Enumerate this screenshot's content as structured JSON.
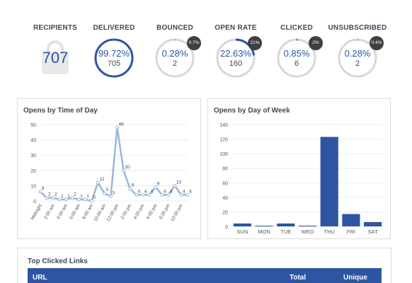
{
  "stats": {
    "recipients": {
      "label": "RECIPIENTS",
      "value": "707"
    },
    "delivered": {
      "label": "DELIVERED",
      "pct": "99.72%",
      "count": "705",
      "fraction": 0.9972
    },
    "bounced": {
      "label": "BOUNCED",
      "pct": "0.28%",
      "count": "2",
      "badge": "0.7%",
      "fraction": 0.0028
    },
    "open_rate": {
      "label": "OPEN RATE",
      "pct": "22.63%",
      "count": "160",
      "badge": "21%",
      "fraction": 0.2263
    },
    "clicked": {
      "label": "CLICKED",
      "pct": "0.85%",
      "count": "6",
      "badge": "2%",
      "fraction": 0.0085
    },
    "unsubscribed": {
      "label": "UNSUBSCRIBED",
      "pct": "0.28%",
      "count": "2",
      "badge": "0.4%",
      "fraction": 0.0028
    }
  },
  "colors": {
    "accent": "#2d55a3",
    "ring_track": "#d7d7d7",
    "line_series": "#9bb6d8",
    "badge": "#3f3f3f"
  },
  "opens_time": {
    "title": "Opens by Time of Day",
    "chart_data": {
      "type": "line",
      "x": [
        "Midnight",
        "1:00 am",
        "2:00 am",
        "3:00 am",
        "4:00 am",
        "5:00 am",
        "6:00 am",
        "7:00 am",
        "8:00 am",
        "9:00 am",
        "10:00 am",
        "11:00 am",
        "12:00 pm",
        "1:00 pm",
        "2:00 pm",
        "3:00 pm",
        "4:00 pm",
        "5:00 pm",
        "6:00 pm",
        "7:00 pm",
        "8:00 pm",
        "9:00 pm",
        "10:00 pm",
        "11:00 pm"
      ],
      "values": [
        6,
        2,
        2,
        1,
        1,
        2,
        1,
        1,
        0,
        12,
        5,
        3,
        48,
        20,
        8,
        4,
        4,
        4,
        9,
        4,
        4,
        10,
        4,
        4
      ],
      "xtick_labels": [
        "Midnight",
        "2:00 am",
        "4:00 am",
        "6:00 am",
        "8:00 am",
        "10:00 am",
        "12:00 pm",
        "2:00 pm",
        "4:00 pm",
        "6:00 pm",
        "8:00 pm",
        "10:00 pm"
      ],
      "ylim": [
        0,
        50
      ],
      "yticks": [
        0,
        10,
        20,
        30,
        40,
        50
      ],
      "grid": true
    }
  },
  "opens_day": {
    "title": "Opens by Day of Week",
    "chart_data": {
      "type": "bar",
      "categories": [
        "SUN",
        "MON",
        "TUE",
        "WED",
        "THU",
        "FRI",
        "SAT"
      ],
      "values": [
        4,
        1,
        4,
        1,
        123,
        17,
        6
      ],
      "ylim": [
        0,
        140
      ],
      "yticks": [
        0,
        20,
        40,
        60,
        80,
        100,
        120,
        140
      ],
      "grid": true
    }
  },
  "links": {
    "title": "Top Clicked Links",
    "columns": [
      "URL",
      "Total",
      "Unique"
    ]
  }
}
